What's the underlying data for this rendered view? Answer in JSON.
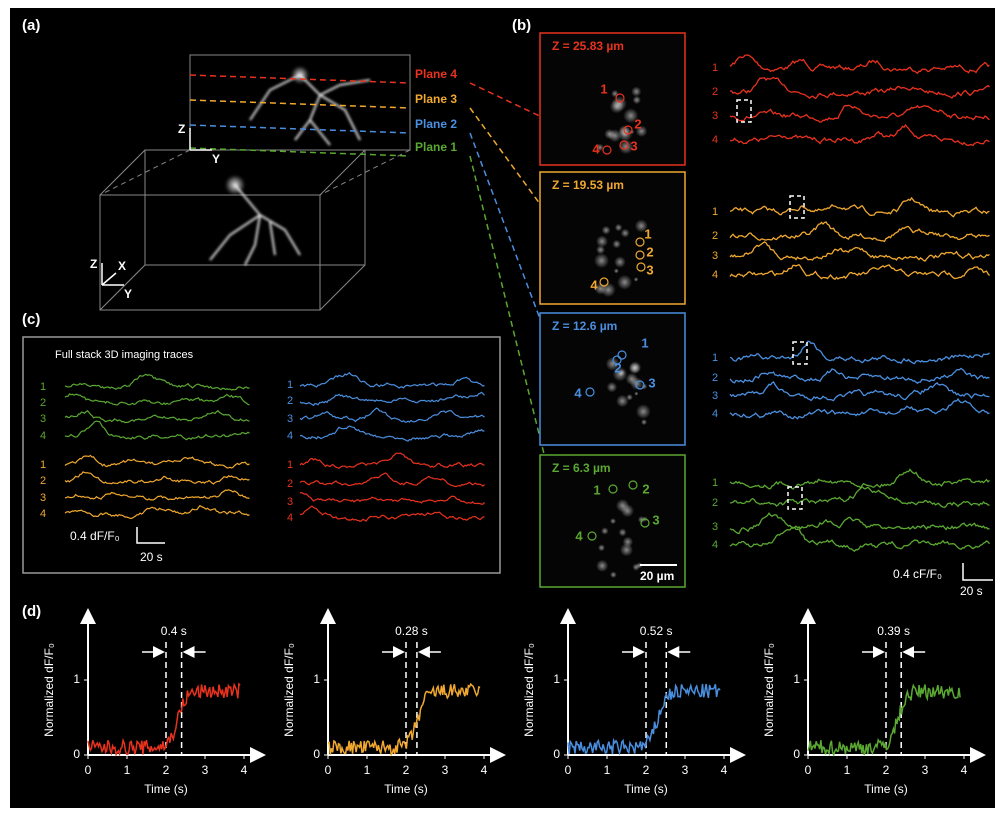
{
  "panel_labels": {
    "a": "(a)",
    "b": "(b)",
    "c": "(c)",
    "d": "(d)"
  },
  "a": {
    "planes": [
      {
        "label": "Plane 4",
        "color": "#e8321e"
      },
      {
        "label": "Plane 3",
        "color": "#f0a830"
      },
      {
        "label": "Plane 2",
        "color": "#4a8fdf"
      },
      {
        "label": "Plane 1",
        "color": "#5aa832"
      }
    ],
    "axes_top": {
      "z": "Z",
      "y": "Y"
    },
    "axes_bottom": {
      "z": "Z",
      "x": "X",
      "y": "Y"
    }
  },
  "b": {
    "panels": [
      {
        "title": "Z = 25.83 µm",
        "color": "#e8321e",
        "rois": [
          "1",
          "2",
          "3",
          "4"
        ],
        "trace_labels": [
          "1",
          "2",
          "3",
          "4"
        ]
      },
      {
        "title": "Z = 19.53 µm",
        "color": "#f0a830",
        "rois": [
          "1",
          "2",
          "3",
          "4"
        ],
        "trace_labels": [
          "1",
          "2",
          "3",
          "4"
        ]
      },
      {
        "title": "Z = 12.6 µm",
        "color": "#4a8fdf",
        "rois": [
          "1",
          "2",
          "3",
          "4"
        ],
        "trace_labels": [
          "1",
          "2",
          "3",
          "4"
        ]
      },
      {
        "title": "Z = 6.3 µm",
        "color": "#5aa832",
        "rois": [
          "1",
          "2",
          "3",
          "4"
        ],
        "trace_labels": [
          "1",
          "2",
          "3",
          "4"
        ]
      }
    ],
    "scale_bar": "20 µm",
    "scale_y": "0.4 cF/F₀",
    "scale_x": "20 s"
  },
  "c": {
    "title": "Full stack 3D imaging traces",
    "groups": [
      {
        "color": "#5aa832",
        "labels": [
          "1",
          "2",
          "3",
          "4"
        ]
      },
      {
        "color": "#4a8fdf",
        "labels": [
          "1",
          "2",
          "3",
          "4"
        ]
      },
      {
        "color": "#f0a830",
        "labels": [
          "1",
          "2",
          "3",
          "4"
        ]
      },
      {
        "color": "#e8321e",
        "labels": [
          "1",
          "2",
          "3",
          "4"
        ]
      }
    ],
    "scale_y": "0.4 dF/F₀",
    "scale_x": "20 s"
  },
  "d": {
    "x_label": "Time (s)",
    "y_label": "Normalized dF/F₀",
    "xticks": [
      "0",
      "1",
      "2",
      "3",
      "4"
    ],
    "yticks": [
      "0",
      "1"
    ],
    "plots": [
      {
        "delay": "0.4 s",
        "color": "#e8321e"
      },
      {
        "delay": "0.28 s",
        "color": "#f0a830"
      },
      {
        "delay": "0.52 s",
        "color": "#4a8fdf"
      },
      {
        "delay": "0.39 s",
        "color": "#5aa832"
      }
    ]
  }
}
